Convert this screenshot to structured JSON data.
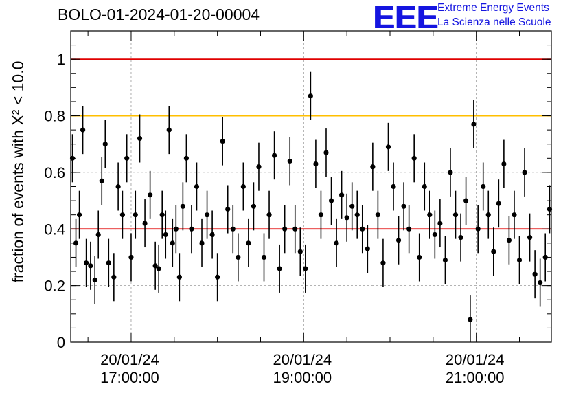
{
  "header": {
    "title": "BOLO-01-2024-01-20-00004",
    "logo_mark": "EEE",
    "logo_line1": "Extreme Energy Events",
    "logo_line2": "La Scienza nelle Scuole"
  },
  "colors": {
    "threshold_red": "#e00000",
    "threshold_orange": "#ffbf00",
    "points": "#000000",
    "logo": "#1515e0"
  },
  "chart_data": {
    "type": "scatter",
    "title": "BOLO-01-2024-01-20-00004",
    "ylabel": "fraction of events with Χ² < 10.0",
    "ylim": [
      0,
      1.1
    ],
    "xlim_hours": [
      16.3,
      21.87
    ],
    "grid": true,
    "y_ticks": [
      {
        "value": 0,
        "label": "0"
      },
      {
        "value": 0.2,
        "label": "0.2"
      },
      {
        "value": 0.4,
        "label": "0.4"
      },
      {
        "value": 0.6,
        "label": "0.6"
      },
      {
        "value": 0.8,
        "label": "0.8"
      },
      {
        "value": 1,
        "label": "1"
      }
    ],
    "x_ticks": [
      {
        "hour": 17.0,
        "date": "20/01/24",
        "time": "17:00:00"
      },
      {
        "hour": 19.0,
        "date": "20/01/24",
        "time": "19:00:00"
      },
      {
        "hour": 21.0,
        "date": "20/01/24",
        "time": "21:00:00"
      }
    ],
    "reference_lines": [
      {
        "y": 1.0,
        "color": "#e00000"
      },
      {
        "y": 0.8,
        "color": "#ffbf00"
      },
      {
        "y": 0.4,
        "color": "#e00000"
      }
    ],
    "typical_error": 0.085,
    "series": [
      {
        "x_hours": [
          16.32,
          16.36,
          16.4,
          16.44,
          16.48,
          16.53,
          16.58,
          16.62,
          16.66,
          16.7,
          16.74,
          16.8,
          16.85,
          16.9,
          16.95,
          17.0,
          17.05,
          17.1,
          17.16,
          17.22,
          17.28,
          17.32,
          17.36,
          17.4,
          17.44,
          17.48,
          17.52,
          17.56,
          17.6,
          17.64,
          17.7,
          17.76,
          17.82,
          17.88,
          17.94,
          18.0,
          18.06,
          18.12,
          18.18,
          18.24,
          18.3,
          18.36,
          18.42,
          18.48,
          18.54,
          18.6,
          18.66,
          18.72,
          18.78,
          18.84,
          18.9,
          18.96,
          19.02,
          19.08,
          19.14,
          19.2,
          19.26,
          19.32,
          19.38,
          19.44,
          19.5,
          19.56,
          19.62,
          19.68,
          19.74,
          19.8,
          19.86,
          19.92,
          19.98,
          20.04,
          20.1,
          20.16,
          20.22,
          20.28,
          20.34,
          20.4,
          20.46,
          20.52,
          20.58,
          20.64,
          20.7,
          20.76,
          20.82,
          20.88,
          20.93,
          20.97,
          21.02,
          21.08,
          21.14,
          21.2,
          21.26,
          21.32,
          21.38,
          21.44,
          21.5,
          21.56,
          21.62,
          21.68,
          21.74,
          21.8,
          21.85
        ],
        "y": [
          0.65,
          0.35,
          0.45,
          0.75,
          0.28,
          0.27,
          0.22,
          0.38,
          0.57,
          0.7,
          0.28,
          0.23,
          0.55,
          0.45,
          0.65,
          0.3,
          0.45,
          0.72,
          0.42,
          0.52,
          0.27,
          0.26,
          0.45,
          0.38,
          0.75,
          0.35,
          0.4,
          0.23,
          0.48,
          0.65,
          0.4,
          0.55,
          0.35,
          0.45,
          0.38,
          0.23,
          0.71,
          0.47,
          0.4,
          0.3,
          0.55,
          0.35,
          0.48,
          0.62,
          0.3,
          0.45,
          0.66,
          0.26,
          0.4,
          0.64,
          0.4,
          0.32,
          0.26,
          0.87,
          0.63,
          0.45,
          0.67,
          0.5,
          0.35,
          0.52,
          0.44,
          0.48,
          0.45,
          0.4,
          0.33,
          0.62,
          0.45,
          0.28,
          0.69,
          0.55,
          0.36,
          0.48,
          0.4,
          0.65,
          0.3,
          0.55,
          0.45,
          0.38,
          0.42,
          0.29,
          0.6,
          0.45,
          0.37,
          0.5,
          0.08,
          0.77,
          0.4,
          0.55,
          0.45,
          0.32,
          0.49,
          0.63,
          0.36,
          0.45,
          0.29,
          0.6,
          0.37,
          0.24,
          0.21,
          0.3,
          0.47
        ]
      }
    ]
  }
}
